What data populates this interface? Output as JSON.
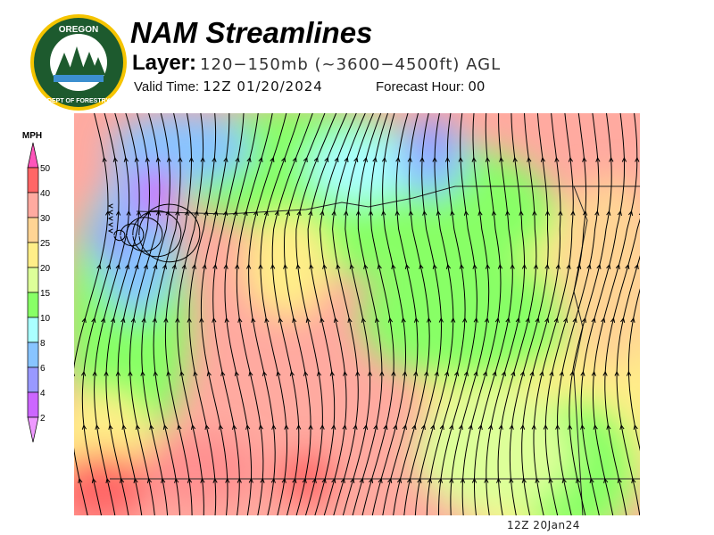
{
  "header": {
    "title": "NAM Streamlines",
    "layer_label": "Layer:",
    "layer_value": "120−150mb (~3600−4500ft) AGL",
    "valid_time_label": "Valid Time:",
    "valid_time_value": "12Z 01/20/2024",
    "forecast_hour_label": "Forecast Hour:",
    "forecast_hour_value": "00"
  },
  "logo": {
    "top_text": "OREGON",
    "bottom_text": "DEPARTMENT OF FORESTRY"
  },
  "legend": {
    "unit": "MPH",
    "ticks": [
      "50",
      "40",
      "30",
      "25",
      "20",
      "15",
      "10",
      "8",
      "6",
      "4",
      "2"
    ],
    "colors": [
      "#ff6666",
      "#ffaaa0",
      "#ffd494",
      "#ffee88",
      "#ddff99",
      "#88ff66",
      "#aaffff",
      "#88c4ff",
      "#9999ff",
      "#cc66ff"
    ],
    "over_color": "#ff55bb",
    "under_color": "#ee99ff"
  },
  "footer": {
    "timestamp": "12Z 20Jan24"
  }
}
